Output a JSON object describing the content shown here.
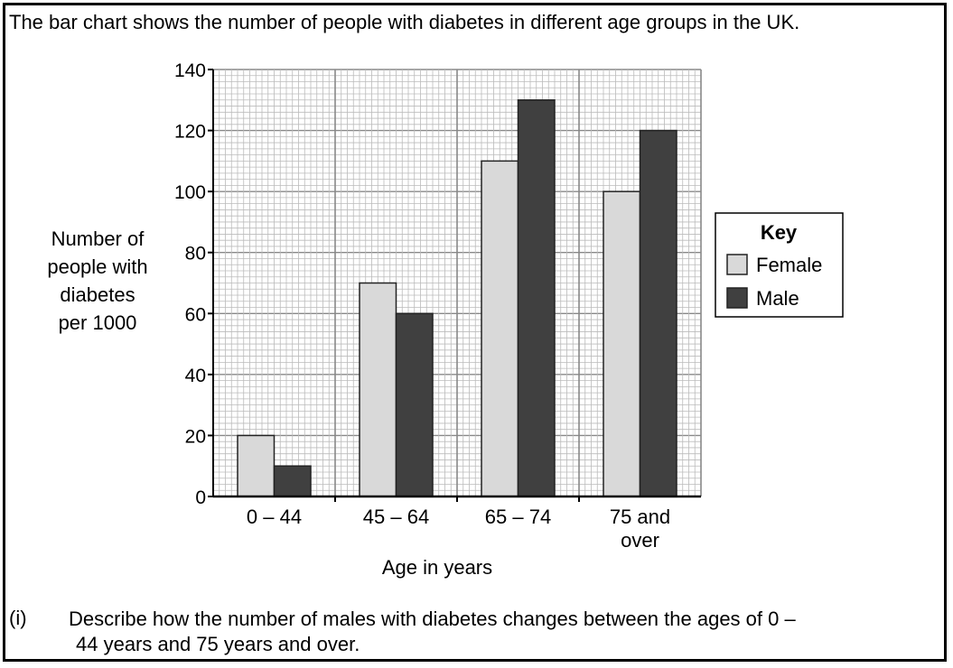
{
  "intro_text": "The bar chart shows the number of people with diabetes in different age groups in the UK.",
  "question": {
    "number": "(i)",
    "line1": "Describe how the number of males with diabetes changes between the ages of 0 –",
    "line2": "44 years and 75 years and over."
  },
  "chart_data": {
    "type": "bar",
    "title": "",
    "ylabel_lines": [
      "Number of",
      "people with",
      "diabetes",
      "per 1000"
    ],
    "xlabel": "Age in years",
    "categories": [
      [
        "0 – 44"
      ],
      [
        "45 – 64"
      ],
      [
        "65 – 74"
      ],
      [
        "75 and",
        "over"
      ]
    ],
    "series": [
      {
        "name": "Female",
        "values": [
          20,
          70,
          110,
          100
        ],
        "color": "#d9d9d9"
      },
      {
        "name": "Male",
        "values": [
          10,
          60,
          130,
          120
        ],
        "color": "#404040"
      }
    ],
    "ylim": [
      0,
      140
    ],
    "yticks": [
      0,
      20,
      40,
      60,
      80,
      100,
      120,
      140
    ],
    "grid": true,
    "legend": {
      "title": "Key",
      "position": "right"
    }
  }
}
